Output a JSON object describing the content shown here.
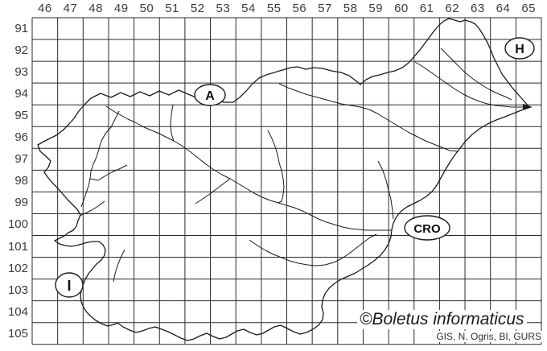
{
  "axes": {
    "top_labels": [
      "46",
      "47",
      "48",
      "49",
      "50",
      "51",
      "52",
      "53",
      "54",
      "55",
      "56",
      "57",
      "58",
      "59",
      "60",
      "61",
      "62",
      "63",
      "64",
      "65"
    ],
    "left_labels": [
      "91",
      "92",
      "93",
      "94",
      "95",
      "96",
      "97",
      "98",
      "99",
      "100",
      "101",
      "102",
      "103",
      "104",
      "105"
    ]
  },
  "country_labels": {
    "austria": "A",
    "hungary": "H",
    "croatia": "CRO",
    "italy": "I"
  },
  "watermark": {
    "text": "©Boletus informaticus"
  },
  "attribution": {
    "text": "GIS, N. Ogris, BI, GURS"
  },
  "colors": {
    "background": "#ffffff",
    "grid_line": "#2b2b2b",
    "map_line": "#1b1b1b",
    "axis_text": "#3b3b3b"
  }
}
